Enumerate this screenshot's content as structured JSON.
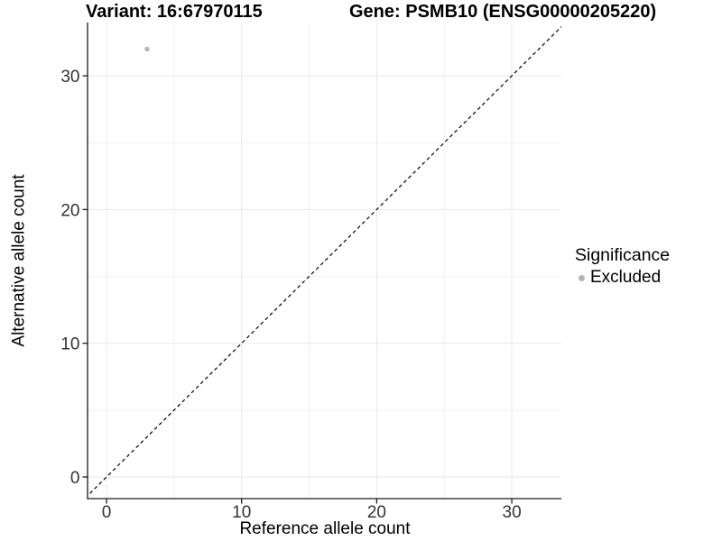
{
  "chart_data": {
    "type": "scatter",
    "title_left": "Variant: 16:67970115",
    "title_right": "Gene: PSMB10 (ENSG00000205220)",
    "xlabel": "Reference allele count",
    "ylabel": "Alternative allele count",
    "x_ticks": [
      0,
      10,
      20,
      30
    ],
    "y_ticks": [
      0,
      10,
      20,
      30
    ],
    "x_minor_ticks": [
      5,
      15,
      25,
      35
    ],
    "y_minor_ticks": [
      5,
      15,
      25,
      35
    ],
    "xlim": [
      -1.4,
      33.7
    ],
    "ylim": [
      -1.6,
      34.0
    ],
    "grid": "major and minor, light grey on white",
    "series": [
      {
        "name": "Excluded",
        "color": "#b5b5b5",
        "points": [
          {
            "x": 3,
            "y": 32
          }
        ]
      }
    ],
    "reference_line": {
      "type": "identity y=x",
      "style": "dashed",
      "color": "#000000"
    },
    "legend_title": "Significance",
    "legend_position": "right",
    "colors": {
      "grid_major": "#e8e8e8",
      "grid_minor": "#f2f2f2",
      "axis_line": "#1a1a1a",
      "tick_text": "#333333",
      "point": "#b5b5b5"
    }
  }
}
